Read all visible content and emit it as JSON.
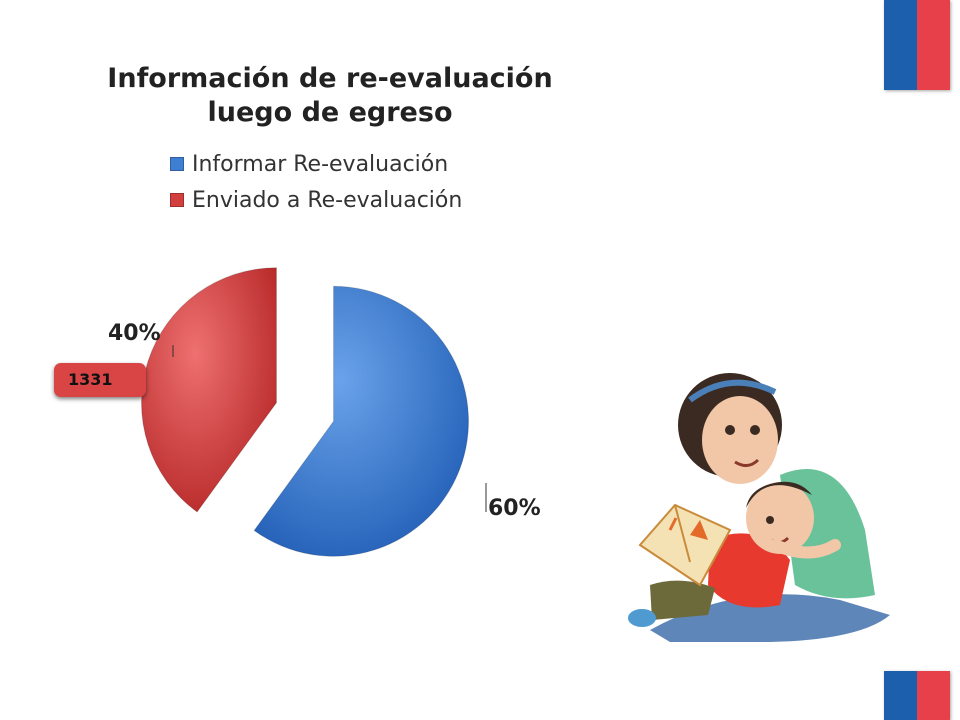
{
  "chart_data": {
    "type": "pie",
    "title": "Información de re-evaluación luego de egreso",
    "title_lines": [
      "Información de re-evaluación",
      "luego de egreso"
    ],
    "series": [
      {
        "name": "Informar Re-evaluación",
        "value": 60,
        "label": "60%",
        "color": "#3f7fd2"
      },
      {
        "name": "Enviado a Re-evaluación",
        "value": 40,
        "label": "40%",
        "color": "#d23f3f"
      }
    ],
    "legend_position": "top",
    "exploded": true
  },
  "callout": {
    "text": "1331",
    "color": "#d94444"
  },
  "flag_colors": {
    "blue": "#1c5fad",
    "red": "#e8404a"
  },
  "illustration": {
    "description_icon": "mother-reading-to-child-illustration"
  }
}
